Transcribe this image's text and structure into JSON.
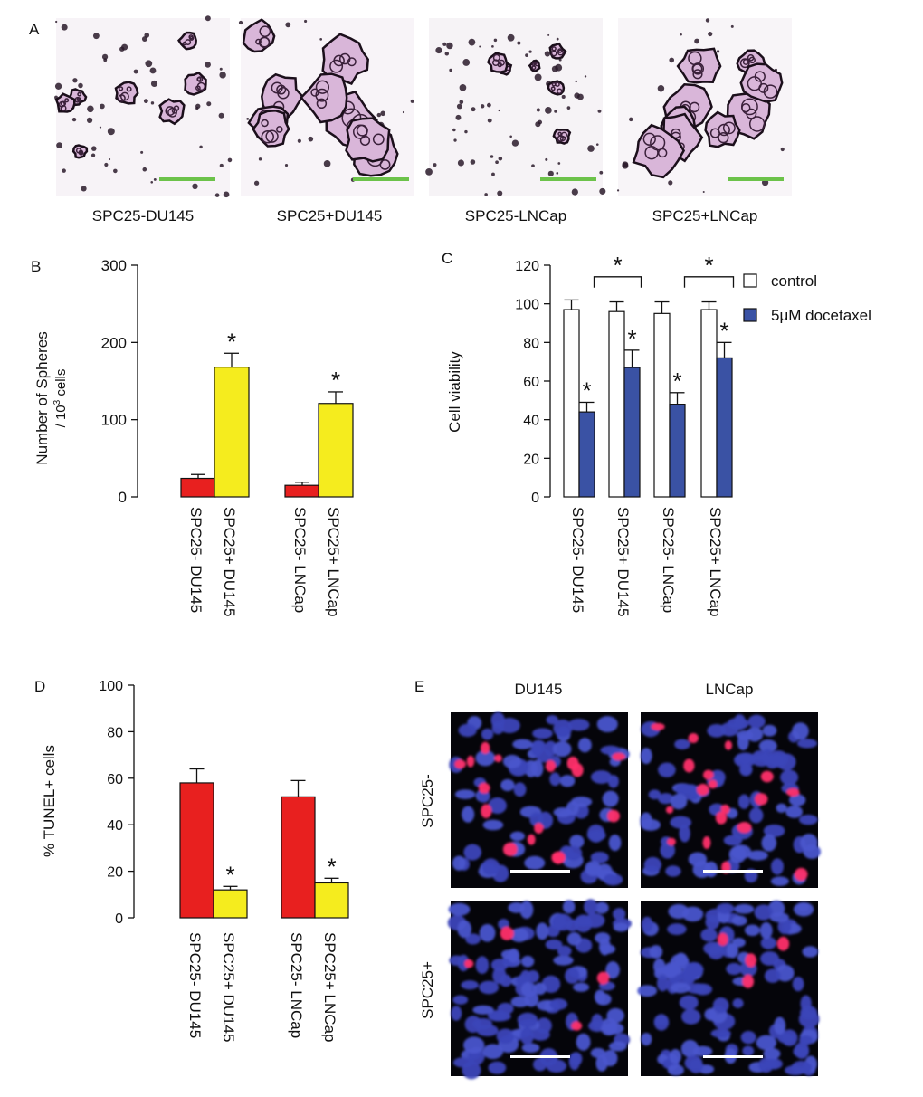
{
  "figure": {
    "panel_labels": [
      "A",
      "B",
      "C",
      "D",
      "E"
    ],
    "panel_a": {
      "images": [
        {
          "caption": "SPC25-DU145"
        },
        {
          "caption": "SPC25+DU145"
        },
        {
          "caption": "SPC25-LNCap"
        },
        {
          "caption": "SPC25+LNCap"
        }
      ],
      "scale_bar_color": "#6cc24a"
    },
    "panel_e": {
      "col_labels": [
        "DU145",
        "LNCap"
      ],
      "row_labels": [
        "SPC25-",
        "SPC25+"
      ],
      "scale_bar_color": "#ffffff"
    }
  },
  "chart_data": [
    {
      "type": "bar",
      "panel": "B",
      "ylabel_line1": "Number of Spheres",
      "ylabel_line2": "/ 10",
      "ylabel_sup": "3",
      "ylabel_line2_end": " cells",
      "ylim": [
        0,
        300
      ],
      "yticks": [
        "300",
        "200",
        "100",
        "0"
      ],
      "ytick_values": [
        300,
        200,
        100,
        0
      ],
      "categories": [
        "SPC25- DU145",
        "SPC25+ DU145",
        "SPC25- LNCap",
        "SPC25+ LNCap"
      ],
      "values": [
        24,
        168,
        15,
        121
      ],
      "errors": [
        5,
        18,
        4,
        15
      ],
      "significance": [
        "",
        "*",
        "",
        "*"
      ],
      "colors": [
        "#e8201f",
        "#f5ec1e",
        "#e8201f",
        "#f5ec1e"
      ]
    },
    {
      "type": "bar",
      "panel": "C",
      "ylabel": "Cell viability",
      "ylim": [
        0,
        120
      ],
      "yticks": [
        "120",
        "100",
        "80",
        "60",
        "40",
        "20",
        "0"
      ],
      "ytick_values": [
        120,
        100,
        80,
        60,
        40,
        20,
        0
      ],
      "categories": [
        "SPC25- DU145",
        "SPC25+ DU145",
        "SPC25- LNCap",
        "SPC25+ LNCap"
      ],
      "series": [
        {
          "name": "control",
          "values": [
            97,
            96,
            95,
            97
          ],
          "errors": [
            5,
            5,
            6,
            4
          ],
          "color": "#ffffff"
        },
        {
          "name": "5μM docetaxel",
          "values": [
            44,
            67,
            48,
            72
          ],
          "errors": [
            5,
            9,
            6,
            8
          ],
          "color": "#3a52a4"
        }
      ],
      "significance": [
        "*",
        "*",
        "*",
        "*"
      ],
      "brackets": [
        {
          "from": 0,
          "to": 1,
          "label": "*"
        },
        {
          "from": 2,
          "to": 3,
          "label": "*"
        }
      ],
      "legend_position": "top-right"
    },
    {
      "type": "bar",
      "panel": "D",
      "ylabel": "% TUNEL+ cells",
      "ylim": [
        0,
        100
      ],
      "yticks": [
        "100",
        "80",
        "60",
        "40",
        "20",
        "0"
      ],
      "ytick_values": [
        100,
        80,
        60,
        40,
        20,
        0
      ],
      "categories": [
        "SPC25- DU145",
        "SPC25+ DU145",
        "SPC25- LNCap",
        "SPC25+ LNCap"
      ],
      "values": [
        58,
        12,
        52,
        15
      ],
      "errors": [
        6,
        1.5,
        7,
        2
      ],
      "significance": [
        "",
        "*",
        "",
        "*"
      ],
      "colors": [
        "#e8201f",
        "#f5ec1e",
        "#e8201f",
        "#f5ec1e"
      ]
    }
  ]
}
